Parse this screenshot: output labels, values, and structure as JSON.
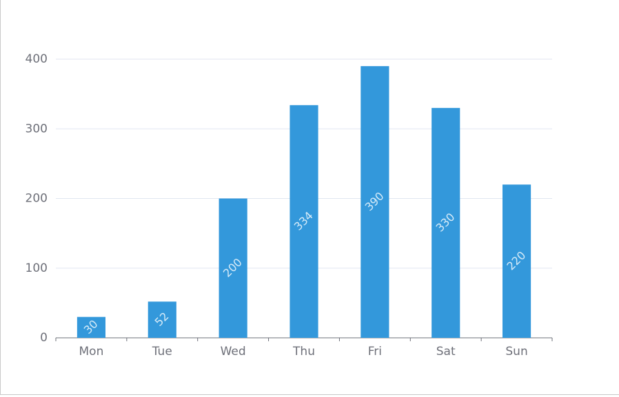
{
  "chart_data": {
    "type": "bar",
    "categories": [
      "Mon",
      "Tue",
      "Wed",
      "Thu",
      "Fri",
      "Sat",
      "Sun"
    ],
    "values": [
      30,
      52,
      200,
      334,
      390,
      330,
      220
    ],
    "color": "#3398db",
    "ylim": [
      0,
      400
    ],
    "yticks": [
      0,
      100,
      200,
      300,
      400
    ],
    "grid": true
  }
}
